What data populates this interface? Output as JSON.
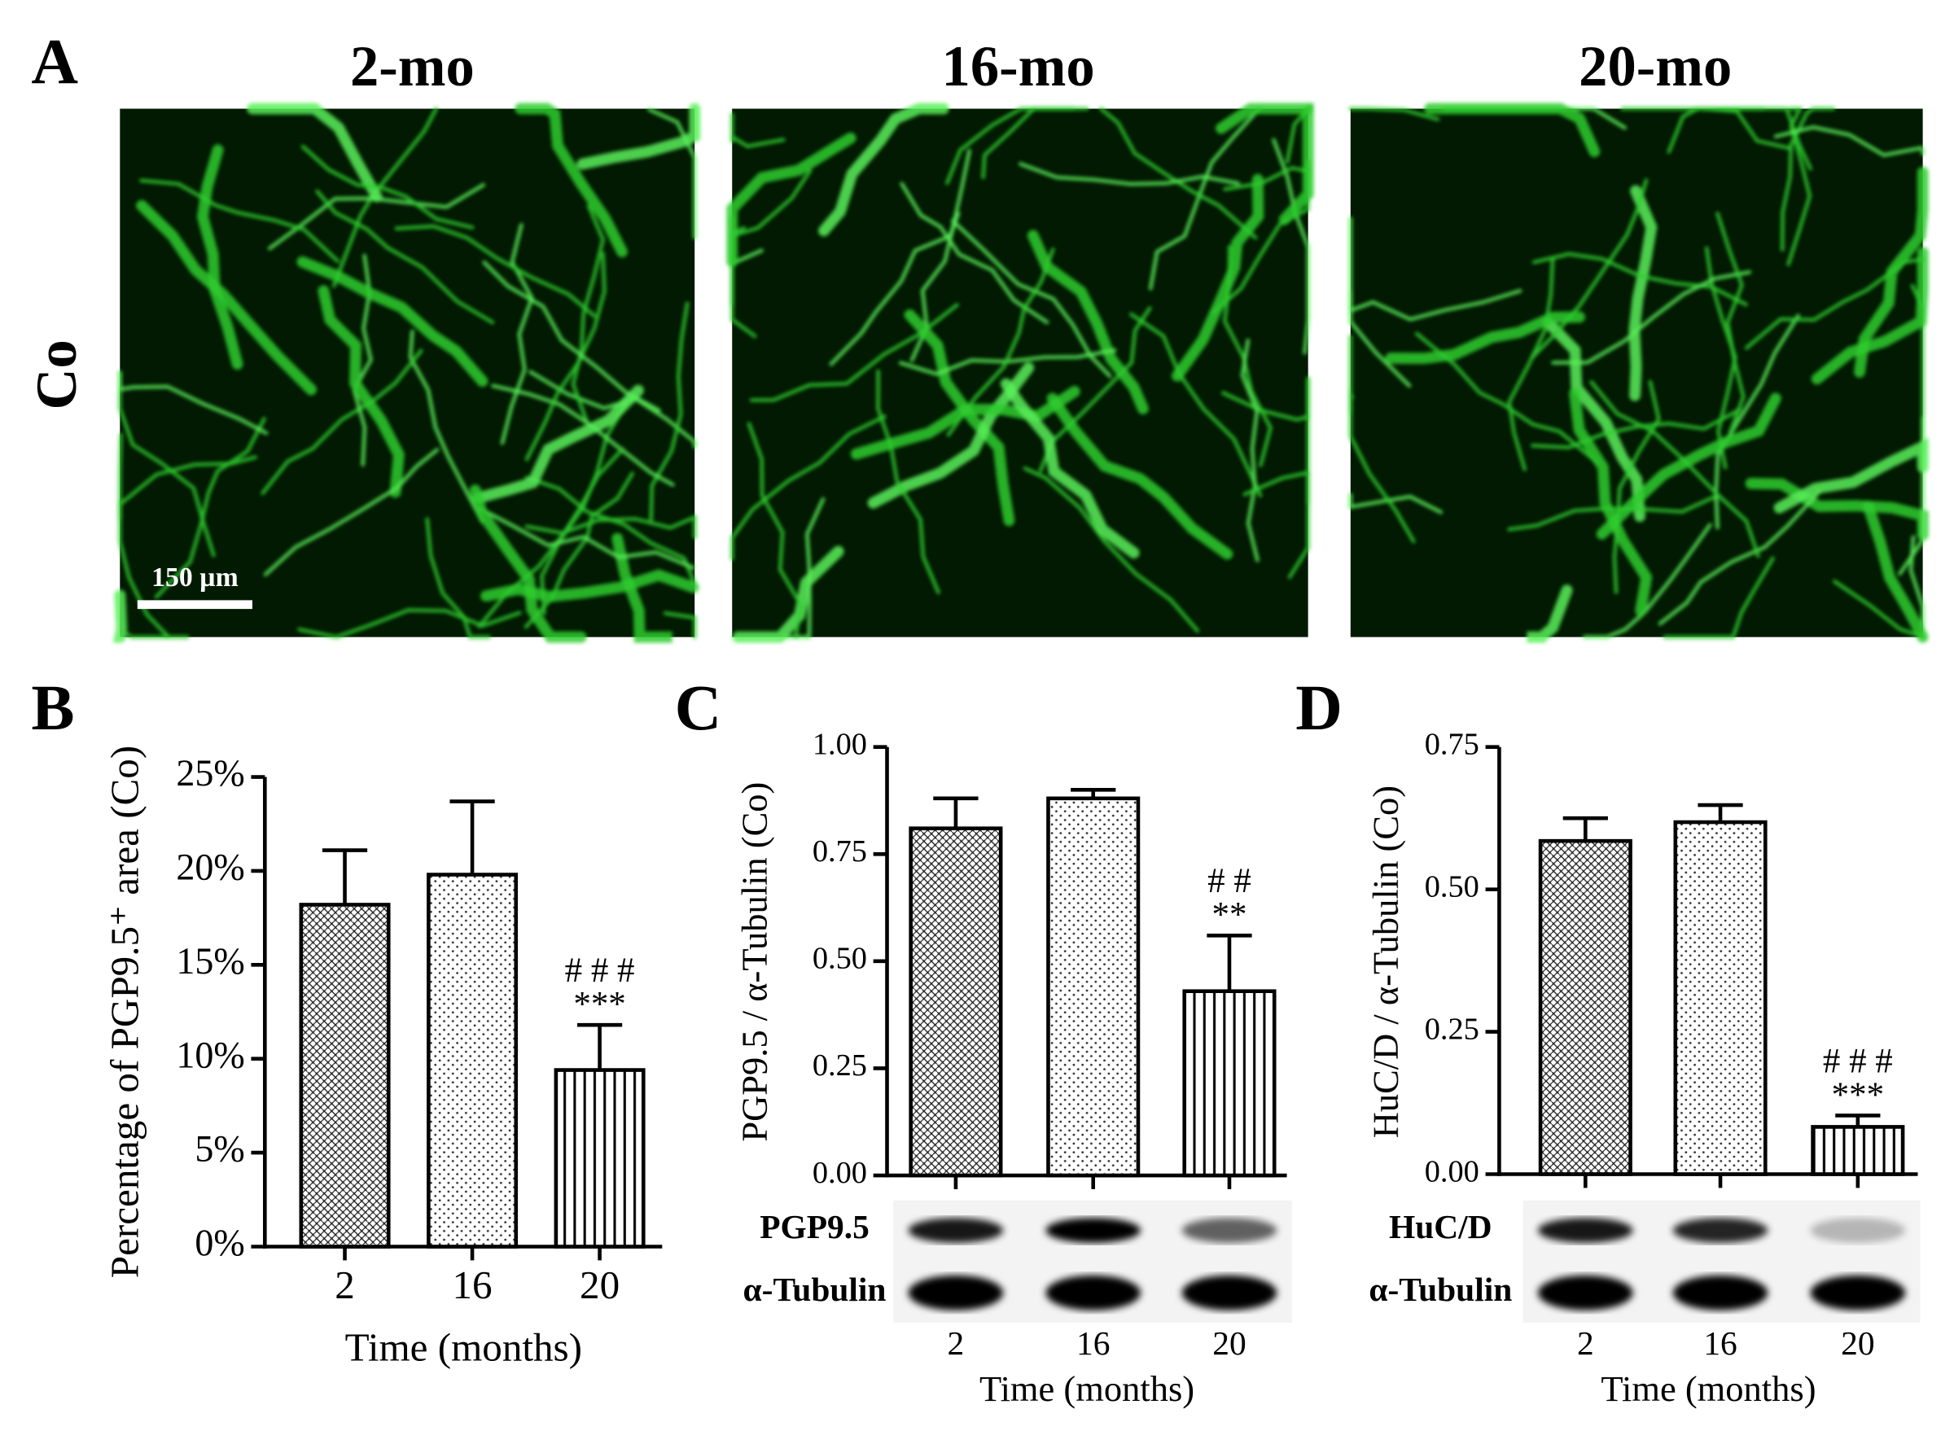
{
  "panel_a": {
    "label": "A",
    "columns": [
      "2-mo",
      "16-mo",
      "20-mo"
    ],
    "row": "Co",
    "scale_bar": "150 µm"
  },
  "chart_data": [
    {
      "type": "bar",
      "label": "B",
      "ylabel": "Percentage of PGP9.5⁺ area (Co)",
      "xlabel": "Time (months)",
      "categories": [
        "2",
        "16",
        "20"
      ],
      "values": [
        18.2,
        19.8,
        9.4
      ],
      "errors": [
        2.9,
        3.9,
        2.4
      ],
      "annotations": [
        "# # #",
        "***"
      ],
      "color": "#000000",
      "grid": false,
      "ylim": [
        0,
        25
      ],
      "yticks": [
        {
          "value": 0,
          "label": "0%"
        },
        {
          "value": 5,
          "label": "5%"
        },
        {
          "value": 10,
          "label": "10%"
        },
        {
          "value": 15,
          "label": "15%"
        },
        {
          "value": 20,
          "label": "20%"
        },
        {
          "value": 25,
          "label": "25%"
        }
      ]
    },
    {
      "type": "bar",
      "label": "C",
      "ylabel": "PGP9.5 / α-Tubulin (Co)",
      "xlabel": "Time (months)",
      "categories": [
        "2",
        "16",
        "20"
      ],
      "values": [
        0.81,
        0.88,
        0.43
      ],
      "errors": [
        0.07,
        0.02,
        0.13
      ],
      "annotations": [
        "# #",
        "**"
      ],
      "color": "#000000",
      "grid": false,
      "blot_labels": [
        "PGP9.5",
        "α-Tubulin"
      ],
      "ylim": [
        0,
        1
      ],
      "yticks": [
        {
          "value": 0,
          "label": "0.00"
        },
        {
          "value": 0.25,
          "label": "0.25"
        },
        {
          "value": 0.5,
          "label": "0.50"
        },
        {
          "value": 0.75,
          "label": "0.75"
        },
        {
          "value": 1,
          "label": "1.00"
        }
      ]
    },
    {
      "type": "bar",
      "label": "D",
      "ylabel": "HuC/D / α-Tubulin (Co)",
      "xlabel": "Time (months)",
      "categories": [
        "2",
        "16",
        "20"
      ],
      "values": [
        0.585,
        0.618,
        0.083
      ],
      "errors": [
        0.04,
        0.03,
        0.02
      ],
      "annotations": [
        "# # #",
        "***"
      ],
      "color": "#000000",
      "grid": false,
      "blot_labels": [
        "HuC/D",
        "α-Tubulin"
      ],
      "ylim": [
        0,
        0.75
      ],
      "yticks": [
        {
          "value": 0,
          "label": "0.00"
        },
        {
          "value": 0.25,
          "label": "0.25"
        },
        {
          "value": 0.5,
          "label": "0.50"
        },
        {
          "value": 0.75,
          "label": "0.75"
        }
      ]
    }
  ]
}
